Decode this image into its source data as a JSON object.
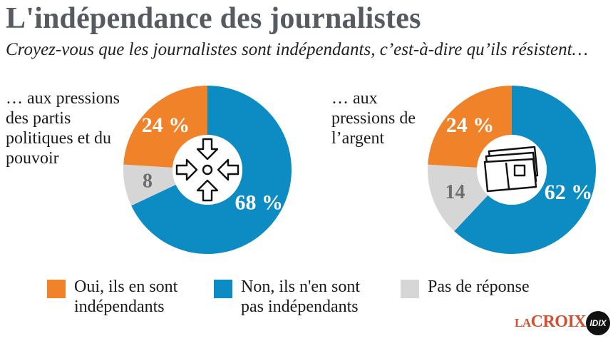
{
  "title": "L'indépendance des journalistes",
  "subtitle": "Croyez-vous que les journalistes sont indépendants, c’est-à-dire qu’ils résistent…",
  "colors": {
    "oui": "#f0832a",
    "non": "#0d8cc4",
    "nsp": "#d6d6d6",
    "title": "#555b60",
    "brand": "#d2502f"
  },
  "chart_data": [
    {
      "type": "pie",
      "title": "… aux pressions des partis politiques et du pouvoir",
      "icon": "arrows-pressure-icon",
      "slices": [
        {
          "name": "Non, ils n'en sont pas indépendants",
          "value": 68,
          "label": "68 %"
        },
        {
          "name": "Pas de réponse",
          "value": 8,
          "label": "8"
        },
        {
          "name": "Oui, ils en sont indépendants",
          "value": 24,
          "label": "24 %"
        }
      ]
    },
    {
      "type": "pie",
      "title": "… aux pressions de l’argent",
      "icon": "banknotes-icon",
      "slices": [
        {
          "name": "Non, ils n'en sont pas indépendants",
          "value": 62,
          "label": "62 %"
        },
        {
          "name": "Pas de réponse",
          "value": 14,
          "label": "14"
        },
        {
          "name": "Oui, ils en sont indépendants",
          "value": 24,
          "label": "24 %"
        }
      ]
    }
  ],
  "legend": [
    {
      "key": "oui",
      "label_line1": "Oui, ils en sont",
      "label_line2": "indépendants"
    },
    {
      "key": "non",
      "label_line1": "Non, ils n'en sont",
      "label_line2": "pas indépendants"
    },
    {
      "key": "nsp",
      "label_line1": "Pas de réponse",
      "label_line2": ""
    }
  ],
  "brand": {
    "la": "LA",
    "croix": "CROIX",
    "idix": "IDIX"
  }
}
